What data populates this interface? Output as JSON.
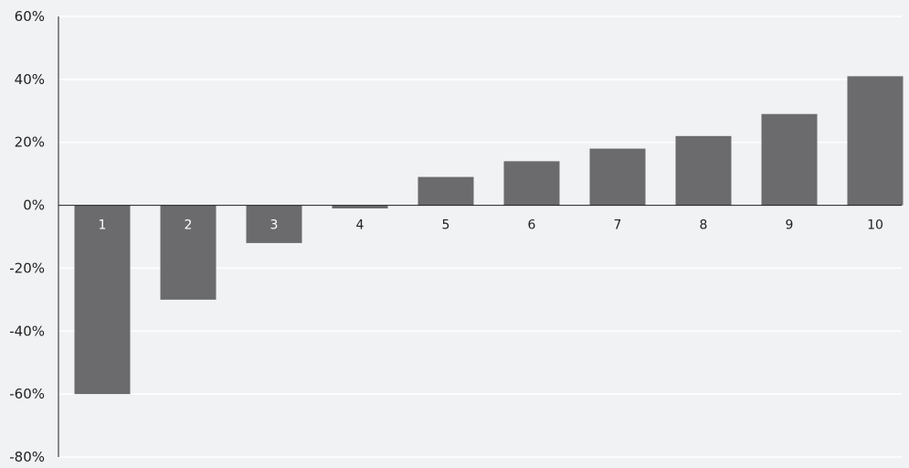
{
  "chart_data": {
    "type": "bar",
    "title": "",
    "xlabel": "",
    "ylabel": "",
    "categories": [
      "1",
      "2",
      "3",
      "4",
      "5",
      "6",
      "7",
      "8",
      "9",
      "10"
    ],
    "values": [
      -60,
      -30,
      -12,
      -1,
      9,
      14,
      18,
      22,
      29,
      41
    ],
    "ylim": [
      -80,
      60
    ],
    "y_ticks": [
      60,
      40,
      20,
      0,
      -20,
      -40,
      -60,
      -80
    ],
    "y_tick_labels": [
      "60%",
      "40%",
      "20%",
      "0%",
      "-20%",
      "-40%",
      "-60%",
      "-80%"
    ],
    "grid": true,
    "legend": "none",
    "colors": {
      "background": "#f1f2f4",
      "bar": "#6b6b6e",
      "grid": "#ffffff",
      "axis": "#1f1f1f",
      "label_on_bar": "#ffffff",
      "label_off_bar": "#1f1f1f"
    }
  }
}
